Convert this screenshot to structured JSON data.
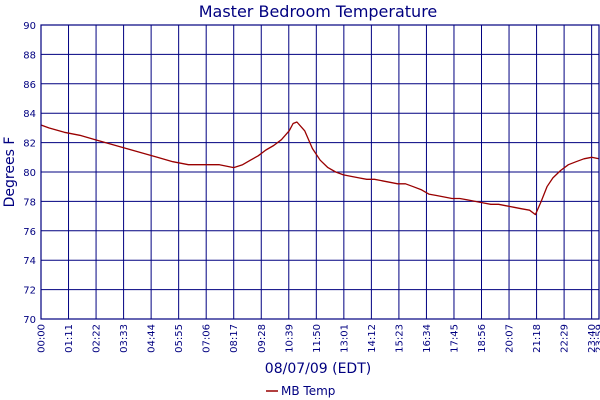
{
  "chart_data": {
    "type": "line",
    "title": "Master Bedroom Temperature",
    "xlabel": "08/07/09 (EDT)",
    "ylabel": "Degrees F",
    "ylim": [
      70,
      90
    ],
    "yticks": [
      70,
      72,
      74,
      76,
      78,
      80,
      82,
      84,
      86,
      88,
      90
    ],
    "xlim": [
      "00:00",
      "23:59"
    ],
    "xticks": [
      "00:00",
      "01:11",
      "02:22",
      "03:33",
      "04:44",
      "05:55",
      "07:06",
      "08:17",
      "09:28",
      "10:39",
      "11:50",
      "13:01",
      "14:12",
      "15:23",
      "16:34",
      "17:45",
      "18:56",
      "20:07",
      "21:18",
      "22:29",
      "23:40",
      "23:59"
    ],
    "grid": true,
    "legend_position": "bottom-center",
    "colors": {
      "series": "#990000",
      "frame": "#000080",
      "text": "#000080"
    },
    "series": [
      {
        "name": "MB Temp",
        "x": [
          "00:00",
          "00:20",
          "01:00",
          "01:40",
          "02:20",
          "03:00",
          "03:40",
          "04:20",
          "05:00",
          "05:40",
          "06:20",
          "07:00",
          "07:40",
          "08:17",
          "08:40",
          "09:00",
          "09:20",
          "09:40",
          "10:00",
          "10:20",
          "10:40",
          "10:50",
          "11:00",
          "11:20",
          "11:40",
          "12:00",
          "12:20",
          "12:40",
          "13:00",
          "13:20",
          "13:40",
          "14:00",
          "14:20",
          "14:40",
          "15:00",
          "15:20",
          "15:40",
          "16:00",
          "16:20",
          "16:40",
          "17:00",
          "17:20",
          "17:40",
          "18:00",
          "18:20",
          "18:40",
          "19:00",
          "19:20",
          "19:40",
          "20:00",
          "20:20",
          "20:40",
          "21:00",
          "21:15",
          "21:30",
          "21:45",
          "22:00",
          "22:20",
          "22:40",
          "23:00",
          "23:20",
          "23:40",
          "23:59"
        ],
        "values": [
          83.2,
          83.0,
          82.7,
          82.5,
          82.2,
          81.9,
          81.6,
          81.3,
          81.0,
          80.7,
          80.5,
          80.5,
          80.5,
          80.3,
          80.5,
          80.8,
          81.1,
          81.5,
          81.8,
          82.2,
          82.8,
          83.3,
          83.4,
          82.8,
          81.6,
          80.8,
          80.3,
          80.0,
          79.8,
          79.7,
          79.6,
          79.5,
          79.5,
          79.4,
          79.3,
          79.2,
          79.2,
          79.0,
          78.8,
          78.5,
          78.4,
          78.3,
          78.2,
          78.2,
          78.1,
          78.0,
          77.9,
          77.8,
          77.8,
          77.7,
          77.6,
          77.5,
          77.4,
          77.1,
          78.0,
          79.0,
          79.6,
          80.1,
          80.5,
          80.7,
          80.9,
          81.0,
          80.9
        ]
      }
    ]
  }
}
